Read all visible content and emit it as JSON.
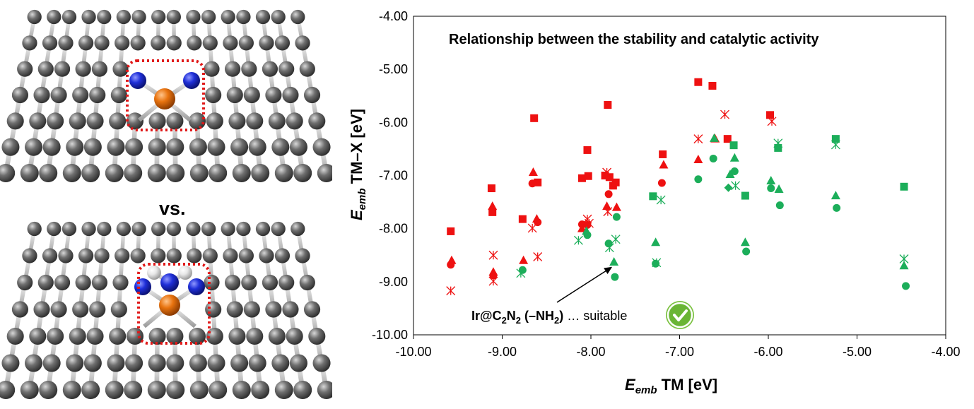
{
  "figure": {
    "vs_label": "vs.",
    "structure_top": "TM@C2N2",
    "structure_bottom": "TM@C2N2(-NH2)",
    "colors": {
      "carbon": "#6f6f6f",
      "nitrogen": "#1f2fd8",
      "metal": "#e8730f",
      "hydrogen": "#e8e8e8",
      "highlight_box": "#e01818"
    }
  },
  "chart_data": {
    "type": "scatter",
    "title": "Relationship between the stability and catalytic activity",
    "xlabel": {
      "italic": "E",
      "sub": "emb",
      "rest": " TM [eV]"
    },
    "ylabel": {
      "italic": "E",
      "sub": "emb",
      "rest": "  TM–X [eV]"
    },
    "xlim": [
      -10.0,
      -4.0
    ],
    "ylim": [
      -10.0,
      -4.0
    ],
    "xticks": [
      "-10.00",
      "-9.00",
      "-8.00",
      "-7.00",
      "-6.00",
      "-5.00",
      "-4.00"
    ],
    "yticks": [
      "-4.00",
      "-5.00",
      "-6.00",
      "-7.00",
      "-8.00",
      "-9.00",
      "-10.00"
    ],
    "grid": false,
    "annotation": {
      "prefix": "Ir@C",
      "sub1": "2",
      "mid": "N",
      "sub2": "2",
      "group": " (–NH",
      "sub3": "2",
      "close": ")",
      "tail": " … suitable",
      "arrow_to": [
        -7.76,
        -8.72
      ],
      "badge_icon": "check-circle-icon"
    },
    "series": [
      {
        "color": "#ee1111",
        "marker": "square",
        "x": [
          -9.58,
          -9.12,
          -9.11,
          -8.77,
          -8.64,
          -8.6,
          -8.1,
          -8.04,
          -8.03,
          -7.84,
          -7.81,
          -7.79,
          -7.75,
          -7.72,
          -7.19,
          -6.79,
          -6.63,
          -6.46,
          -5.98
        ],
        "y": [
          -8.05,
          -7.24,
          -7.69,
          -7.82,
          -5.92,
          -7.13,
          -7.05,
          -6.52,
          -7.01,
          -7.0,
          -5.67,
          -7.03,
          -7.19,
          -7.13,
          -6.6,
          -5.24,
          -5.31,
          -6.31,
          -5.86
        ]
      },
      {
        "color": "#ee1111",
        "marker": "triangle",
        "x": [
          -9.57,
          -9.11,
          -9.1,
          -8.76,
          -8.65,
          -8.61,
          -8.1,
          -7.82,
          -7.71,
          -7.18,
          -6.79,
          -6.6
        ],
        "y": [
          -8.6,
          -7.58,
          -8.82,
          -8.6,
          -6.94,
          -7.82,
          -8.0,
          -7.58,
          -7.6,
          -6.8,
          -6.7,
          -6.31
        ]
      },
      {
        "color": "#ee1111",
        "marker": "circle",
        "x": [
          -9.58,
          -9.1,
          -8.66,
          -8.6,
          -8.1,
          -8.04,
          -7.8,
          -7.2
        ],
        "y": [
          -8.68,
          -8.88,
          -7.15,
          -7.88,
          -7.92,
          -7.93,
          -7.35,
          -7.14
        ]
      },
      {
        "color": "#ee1111",
        "marker": "star",
        "x": [
          -9.58,
          -9.1,
          -9.1,
          -8.66,
          -8.6,
          -8.04,
          -8.02,
          -7.82,
          -7.81,
          -6.79,
          -6.49,
          -5.96
        ],
        "y": [
          -9.17,
          -8.5,
          -8.99,
          -7.99,
          -8.53,
          -7.82,
          -7.9,
          -6.94,
          -7.68,
          -6.31,
          -5.85,
          -5.98
        ]
      },
      {
        "color": "#1cae5a",
        "marker": "square",
        "x": [
          -7.3,
          -6.39,
          -6.26,
          -5.89,
          -5.24,
          -4.47
        ],
        "y": [
          -7.39,
          -6.43,
          -7.38,
          -6.48,
          -6.31,
          -7.21
        ]
      },
      {
        "color": "#1cae5a",
        "marker": "triangle",
        "x": [
          -8.05,
          -7.74,
          -7.27,
          -6.61,
          -6.43,
          -6.38,
          -6.26,
          -5.97,
          -5.88,
          -5.24,
          -4.47
        ],
        "y": [
          -8.05,
          -8.63,
          -8.26,
          -6.3,
          -6.98,
          -6.67,
          -8.26,
          -7.1,
          -7.26,
          -7.38,
          -8.7
        ]
      },
      {
        "color": "#1cae5a",
        "marker": "circle",
        "x": [
          -8.77,
          -8.04,
          -7.8,
          -7.73,
          -7.71,
          -7.27,
          -6.79,
          -6.62,
          -6.38,
          -6.25,
          -5.97,
          -5.87,
          -5.23,
          -4.45
        ],
        "y": [
          -8.78,
          -8.12,
          -8.28,
          -8.91,
          -7.78,
          -8.66,
          -7.07,
          -6.68,
          -6.92,
          -8.43,
          -7.24,
          -7.56,
          -7.61,
          -9.08
        ]
      },
      {
        "color": "#1cae5a",
        "marker": "diamond",
        "x": [
          -6.45
        ],
        "y": [
          -7.23
        ]
      },
      {
        "color": "#1cae5a",
        "marker": "star",
        "x": [
          -8.79,
          -8.14,
          -7.79,
          -7.72,
          -7.26,
          -7.21,
          -6.37,
          -5.89,
          -5.24,
          -4.47
        ],
        "y": [
          -8.84,
          -8.22,
          -8.36,
          -8.2,
          -8.64,
          -7.46,
          -7.19,
          -6.39,
          -6.42,
          -8.57
        ]
      }
    ]
  }
}
